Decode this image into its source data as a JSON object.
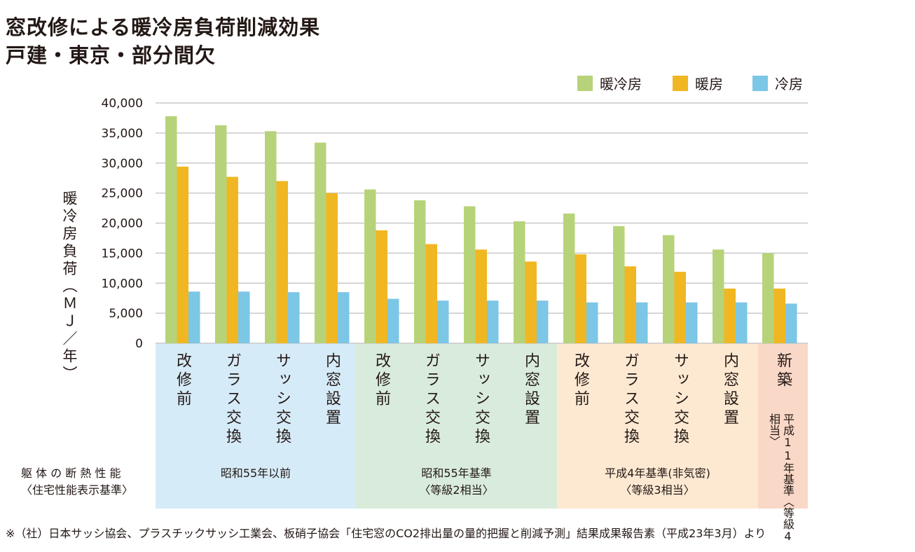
{
  "title_line1": "窓改修による暖冷房負荷削減効果",
  "title_line2": "戸建・東京・部分間欠",
  "chart_data": {
    "type": "bar",
    "ylabel": "暖冷房負荷（ＭＪ／年）",
    "ylim": [
      0,
      40000
    ],
    "yticks": [
      "40,000",
      "35,000",
      "30,000",
      "25,000",
      "20,000",
      "15,000",
      "10,000",
      "5,000",
      "0"
    ],
    "ytick_values": [
      40000,
      35000,
      30000,
      25000,
      20000,
      15000,
      10000,
      5000,
      0
    ],
    "categories": [
      "改修前",
      "ガラス交換",
      "サッシ交換",
      "内窓設置",
      "改修前",
      "ガラス交換",
      "サッシ交換",
      "内窓設置",
      "改修前",
      "ガラス交換",
      "サッシ交換",
      "内窓設置",
      "新築"
    ],
    "series": [
      {
        "name": "暖冷房",
        "color": "#b7d379",
        "values": [
          37800,
          36300,
          35300,
          33400,
          25600,
          23800,
          22800,
          20300,
          21600,
          19500,
          18000,
          15600,
          15000
        ]
      },
      {
        "name": "暖房",
        "color": "#f0b722",
        "values": [
          29400,
          27700,
          27000,
          25000,
          18800,
          16500,
          15600,
          13600,
          14800,
          12800,
          11900,
          9100,
          9100
        ]
      },
      {
        "name": "冷房",
        "color": "#7cc6e6",
        "values": [
          8600,
          8600,
          8500,
          8500,
          7400,
          7100,
          7100,
          7100,
          6800,
          6800,
          6800,
          6800,
          6600
        ]
      }
    ],
    "groups": [
      {
        "label": "昭和55年以前",
        "sublabel": "",
        "color": "#d6ebf8"
      },
      {
        "label": "昭和55年基準",
        "sublabel": "〈等級2相当〉",
        "color": "#d9ecdb"
      },
      {
        "label": "平成4年基準(非気密)",
        "sublabel": "〈等級3相当〉",
        "color": "#fde9d2"
      },
      {
        "label": "平成11年基準",
        "sublabel": "〈等級4相当〉",
        "color": "#f9d8c7"
      }
    ]
  },
  "row_label_line1": "躯 体 の 断 熱 性 能",
  "row_label_line2": "〈住宅性能表示基準〉",
  "note": "※（社）日本サッシ協会、プラスチックサッシ工業会、板硝子協会「住宅窓のCO2排出量の量的把握と削減予測」結果成果報告素（平成23年3月）より"
}
